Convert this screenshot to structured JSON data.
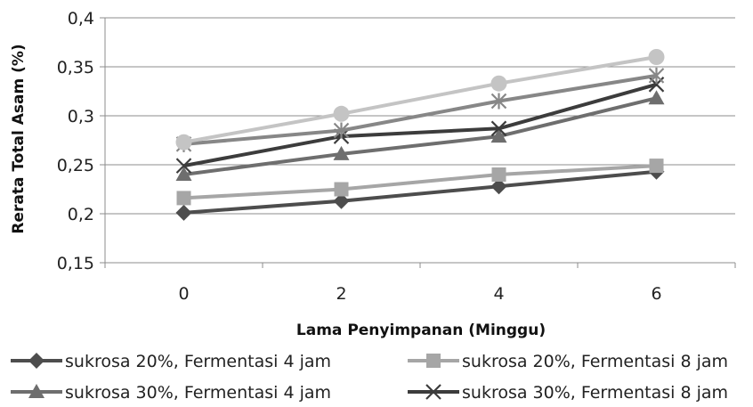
{
  "chart_data": {
    "type": "line",
    "xlabel": "Lama Penyimpanan (Minggu)",
    "ylabel": "Rerata Total Asam (%)",
    "x": [
      0,
      2,
      4,
      6
    ],
    "x_tick_labels": [
      "0",
      "2",
      "4",
      "6"
    ],
    "ylim": [
      0.15,
      0.4
    ],
    "y_ticks": [
      0.15,
      0.2,
      0.25,
      0.3,
      0.35,
      0.4
    ],
    "y_tick_labels": [
      "0,15",
      "0,2",
      "0,25",
      "0,3",
      "0,35",
      "0,4"
    ],
    "grid": true,
    "legend_position": "bottom",
    "series": [
      {
        "name": "sukrosa 20%, Fermentasi 4 jam",
        "values": [
          0.201,
          0.213,
          0.228,
          0.243
        ],
        "color": "#4d4d4d",
        "marker": "diamond"
      },
      {
        "name": "sukrosa 20%, Fermentasi 8 jam",
        "values": [
          0.216,
          0.225,
          0.24,
          0.249
        ],
        "color": "#a6a6a6",
        "marker": "square"
      },
      {
        "name": "sukrosa 30%, Fermentasi 4 jam",
        "values": [
          0.24,
          0.261,
          0.279,
          0.318
        ],
        "color": "#6e6e6e",
        "marker": "triangle"
      },
      {
        "name": "sukrosa 30%, Fermentasi 8 jam",
        "values": [
          0.249,
          0.279,
          0.287,
          0.332
        ],
        "color": "#3c3c3c",
        "marker": "x"
      },
      {
        "name": "",
        "values": [
          0.271,
          0.285,
          0.315,
          0.341
        ],
        "color": "#878787",
        "marker": "asterisk"
      },
      {
        "name": "",
        "values": [
          0.273,
          0.302,
          0.333,
          0.36
        ],
        "color": "#c4c4c4",
        "marker": "circle"
      }
    ]
  }
}
